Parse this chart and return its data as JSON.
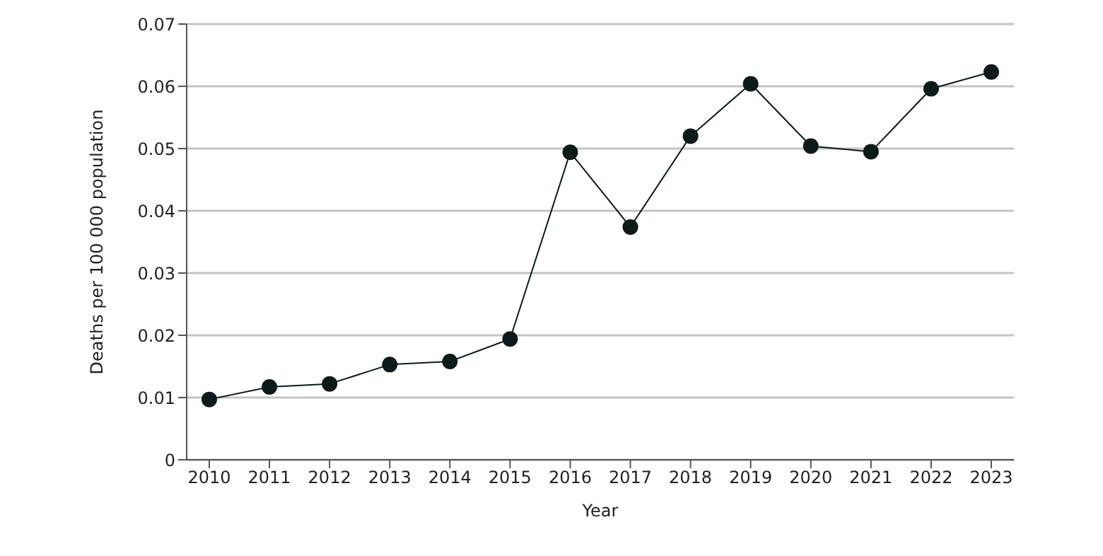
{
  "chart_data": {
    "type": "line",
    "xlabel": "Year",
    "ylabel": "Deaths per 100 000 population",
    "categories": [
      "2010",
      "2011",
      "2012",
      "2013",
      "2014",
      "2015",
      "2016",
      "2017",
      "2018",
      "2019",
      "2020",
      "2021",
      "2022",
      "2023"
    ],
    "series": [
      {
        "color": "#0d1a1a",
        "values": [
          0.0097,
          0.0117,
          0.0122,
          0.0153,
          0.0158,
          0.0194,
          0.0494,
          0.0374,
          0.052,
          0.0604,
          0.0504,
          0.0495,
          0.0596,
          0.0623
        ]
      }
    ],
    "ylim": [
      0,
      0.07
    ],
    "yticks": [
      0,
      0.01,
      0.02,
      0.03,
      0.04,
      0.05,
      0.06,
      0.07
    ],
    "grid": "y",
    "marker": "circle",
    "line_style": "solid",
    "legend": false
  }
}
